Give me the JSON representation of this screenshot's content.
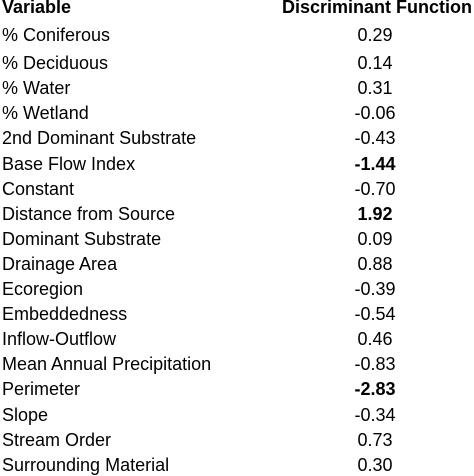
{
  "table": {
    "columns": [
      "Variable",
      "Discriminant Function"
    ],
    "rows": [
      {
        "variable": "% Coniferous",
        "value": "0.29",
        "bold": false
      },
      {
        "variable": "% Deciduous",
        "value": "0.14",
        "bold": false
      },
      {
        "variable": "% Water",
        "value": "0.31",
        "bold": false
      },
      {
        "variable": "% Wetland",
        "value": "-0.06",
        "bold": false
      },
      {
        "variable": "2nd Dominant Substrate",
        "value": "-0.43",
        "bold": false
      },
      {
        "variable": "Base Flow Index",
        "value": "-1.44",
        "bold": true
      },
      {
        "variable": "Constant",
        "value": "-0.70",
        "bold": false
      },
      {
        "variable": "Distance from Source",
        "value": "1.92",
        "bold": true
      },
      {
        "variable": "Dominant Substrate",
        "value": "0.09",
        "bold": false
      },
      {
        "variable": "Drainage Area",
        "value": "0.88",
        "bold": false
      },
      {
        "variable": "Ecoregion",
        "value": "-0.39",
        "bold": false
      },
      {
        "variable": "Embeddedness",
        "value": "-0.54",
        "bold": false
      },
      {
        "variable": "Inflow-Outflow",
        "value": "0.46",
        "bold": false
      },
      {
        "variable": "Mean Annual Precipitation",
        "value": "-0.83",
        "bold": false
      },
      {
        "variable": "Perimeter",
        "value": "-2.83",
        "bold": true
      },
      {
        "variable": "Slope",
        "value": "-0.34",
        "bold": false
      },
      {
        "variable": "Stream Order",
        "value": "0.73",
        "bold": false
      },
      {
        "variable": "Surrounding Material",
        "value": "0.30",
        "bold": false
      }
    ]
  }
}
